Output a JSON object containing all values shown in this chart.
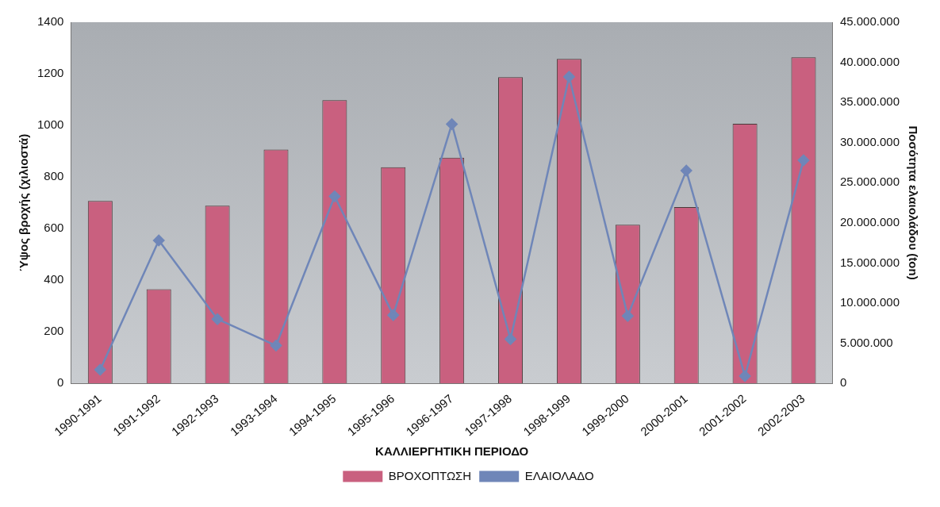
{
  "chart_data": {
    "type": "bar",
    "xlabel": "ΚΑΛΛΙΕΡΓΗΤΙΚΗ ΠΕΡΙΟΔΟ",
    "ylabel": "Ύψος βροχής (χιλιοστά)",
    "y2label": "Ποσότητα ελαιολάδου (ton)",
    "categories": [
      "1990-1991",
      "1991-1992",
      "1992-1993",
      "1993-1994",
      "1994-1995",
      "1995-1996",
      "1996-1997",
      "1997-1998",
      "1998-1999",
      "1999-2000",
      "2000-2001",
      "2001-2002",
      "2002-2003"
    ],
    "series": [
      {
        "name": "ΒΡΟΧΟΠΤΩΣΗ",
        "color": "#c9607f",
        "values": [
          707,
          365,
          689,
          906,
          1098,
          838,
          875,
          1187,
          1258,
          615,
          683,
          1006,
          1264
        ]
      },
      {
        "name": "ΕΛΑΙΟΛΑΔΟ",
        "type": "line",
        "axis": "y2",
        "color": "#6f86b8",
        "marker": "diamond",
        "values": [
          1700000,
          17800000,
          8000000,
          4700000,
          23300000,
          8500000,
          32300000,
          5500000,
          38200000,
          8400000,
          26500000,
          900000,
          27800000
        ]
      }
    ],
    "ylim": [
      0,
      1400
    ],
    "yticks": [
      0,
      200,
      400,
      600,
      800,
      1000,
      1200,
      1400
    ],
    "y2lim": [
      0,
      45000000
    ],
    "y2ticks": [
      0,
      {
        "value": 5000000,
        "label": "5.000.000"
      },
      {
        "value": 10000000,
        "label": "10.000.000"
      },
      {
        "value": 15000000,
        "label": "15.000.000"
      },
      {
        "value": 20000000,
        "label": "20.000.000"
      },
      {
        "value": 25000000,
        "label": "25.000.000"
      },
      {
        "value": 30000000,
        "label": "30.000.000"
      },
      {
        "value": 35000000,
        "label": "35.000.000"
      },
      {
        "value": 40000000,
        "label": "40.000.000"
      },
      {
        "value": 45000000,
        "label": "45.000.000"
      }
    ],
    "legend": "bottom"
  }
}
